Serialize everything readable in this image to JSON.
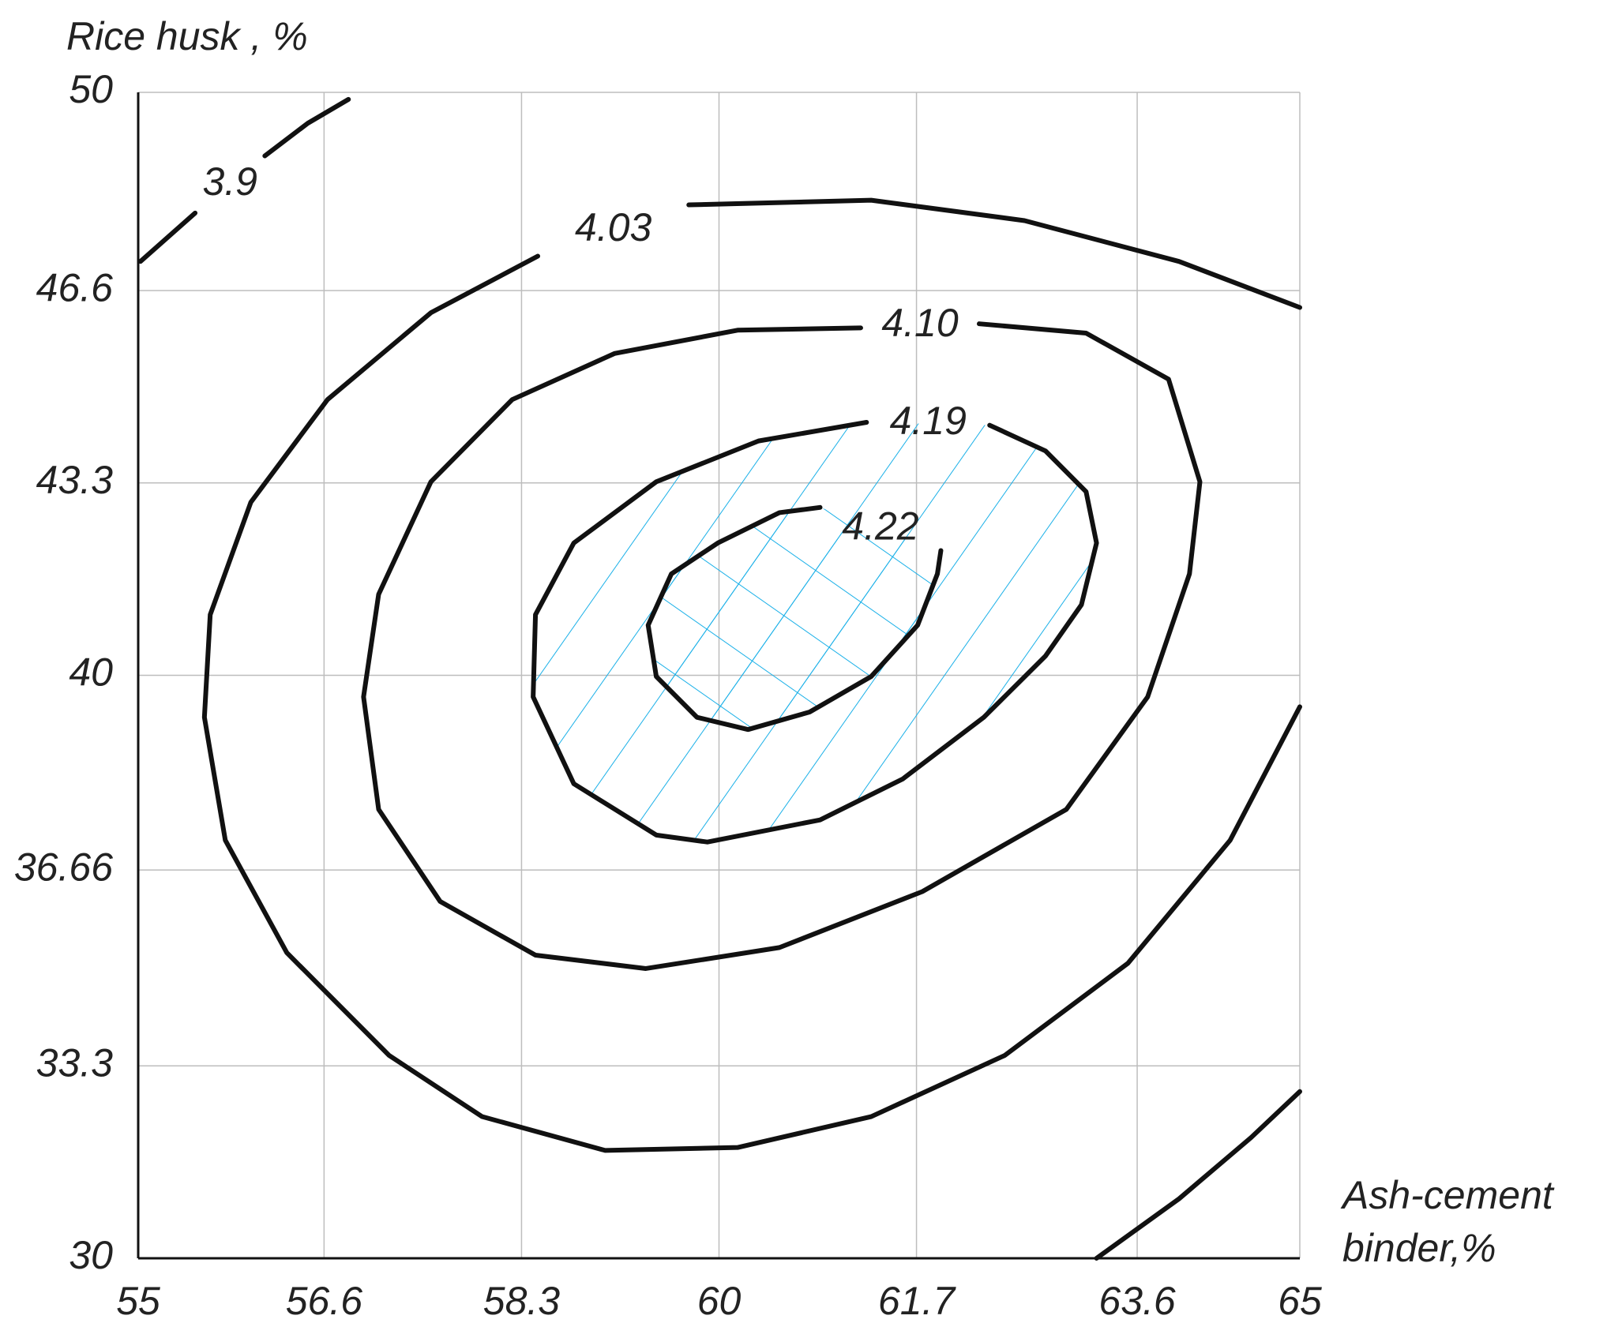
{
  "chart_data": {
    "type": "contour",
    "ylabel": "Rice husk , %",
    "xlabel": [
      "Ash-cement",
      "binder,%"
    ],
    "xlim": [
      55,
      65
    ],
    "ylim": [
      30,
      50
    ],
    "xticks": [
      55,
      56.6,
      58.3,
      60,
      61.7,
      63.6,
      65
    ],
    "yticks": [
      30,
      33.3,
      36.66,
      40,
      43.3,
      46.6,
      50
    ],
    "grid": true,
    "color": "#111111",
    "hatch_color": "#1ab0e8",
    "contours": [
      {
        "level": 3.9,
        "x": [
          55.02,
          55.49,
          null,
          56.09,
          56.46,
          56.81,
          null,
          63.25,
          63.96,
          64.58,
          65.0
        ],
        "y": [
          47.1,
          47.93,
          null,
          48.91,
          49.47,
          49.88,
          null,
          30.0,
          31.02,
          32.07,
          32.86
        ]
      },
      {
        "level": 4.03,
        "x": [
          65.0,
          63.96,
          62.63,
          61.31,
          59.74,
          null,
          58.44,
          57.52,
          56.63,
          55.97,
          55.62,
          55.57,
          55.75,
          56.28,
          57.16,
          57.96,
          59.02,
          60.16,
          61.31,
          62.46,
          63.52,
          64.4,
          65.0
        ],
        "y": [
          46.31,
          47.1,
          47.8,
          48.15,
          48.07,
          null,
          47.19,
          46.22,
          44.73,
          42.97,
          41.04,
          39.28,
          37.17,
          35.24,
          33.48,
          32.43,
          31.85,
          31.9,
          32.43,
          33.48,
          35.06,
          37.17,
          39.46
        ]
      },
      {
        "level": 4.1,
        "label": "4.10",
        "x": [
          62.24,
          63.16,
          63.87,
          64.14,
          64.05,
          63.69,
          62.99,
          61.75,
          60.52,
          59.37,
          58.42,
          57.6,
          57.07,
          56.94,
          57.07,
          57.52,
          58.22,
          59.1,
          60.16,
          61.22
        ],
        "y": [
          46.03,
          45.87,
          45.08,
          43.32,
          41.74,
          39.63,
          37.7,
          36.29,
          35.33,
          34.97,
          35.2,
          36.12,
          37.7,
          39.63,
          41.39,
          43.32,
          44.73,
          45.52,
          45.92,
          45.96
        ]
      },
      {
        "level": 4.19,
        "x": [
          62.33,
          62.81,
          63.16,
          63.25,
          63.12,
          62.81,
          62.28,
          61.58,
          60.87,
          59.9,
          59.46,
          58.75,
          58.4,
          58.42,
          58.75,
          59.46,
          60.34,
          61.27
        ],
        "y": [
          44.29,
          43.85,
          43.15,
          42.27,
          41.21,
          40.33,
          39.28,
          38.22,
          37.52,
          37.14,
          37.26,
          38.14,
          39.63,
          41.04,
          42.27,
          43.32,
          44.02,
          44.34
        ]
      },
      {
        "level": 4.22,
        "x": [
          60.87,
          60.52,
          59.99,
          59.59,
          59.39,
          59.46,
          59.81,
          60.25,
          60.78,
          61.31,
          61.71,
          61.88,
          61.91
        ],
        "y": [
          42.88,
          42.79,
          42.27,
          41.74,
          40.86,
          39.98,
          39.28,
          39.07,
          39.37,
          39.98,
          40.86,
          41.74,
          42.14
        ]
      }
    ]
  }
}
